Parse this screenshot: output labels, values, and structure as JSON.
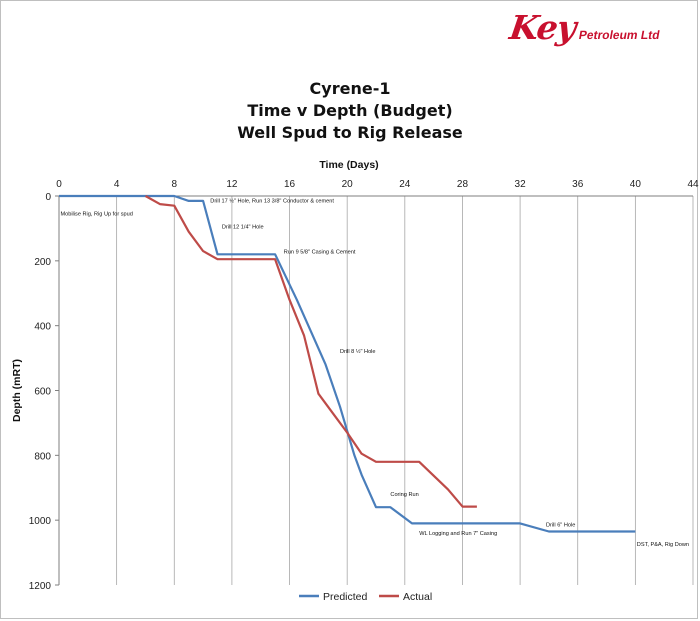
{
  "logo": {
    "brand": "Key",
    "rest": "Petroleum Ltd"
  },
  "chart_data": {
    "type": "line",
    "title": [
      "Cyrene-1",
      "Time v Depth (Budget)",
      "Well Spud to Rig Release"
    ],
    "xlabel": "Time (Days)",
    "ylabel": "Depth (mRT)",
    "xlim": [
      0,
      44
    ],
    "ylim": [
      0,
      1200
    ],
    "y_inverted": true,
    "x_axis_position": "top",
    "xticks": [
      0,
      4,
      8,
      12,
      16,
      20,
      24,
      28,
      32,
      36,
      40,
      44
    ],
    "yticks": [
      0,
      200,
      400,
      600,
      800,
      1000,
      1200
    ],
    "grid": "vertical",
    "legend": "bottom",
    "series": [
      {
        "name": "Predicted",
        "color": "#4a7ebb",
        "points": [
          [
            0,
            0
          ],
          [
            6,
            0
          ],
          [
            8,
            0
          ],
          [
            9,
            15
          ],
          [
            10,
            15
          ],
          [
            11,
            180
          ],
          [
            15,
            180
          ],
          [
            16.5,
            320
          ],
          [
            17.5,
            420
          ],
          [
            18.5,
            520
          ],
          [
            19.5,
            650
          ],
          [
            20.5,
            800
          ],
          [
            21,
            860
          ],
          [
            22,
            960
          ],
          [
            23,
            960
          ],
          [
            24.5,
            1010
          ],
          [
            28,
            1010
          ],
          [
            32,
            1010
          ],
          [
            34,
            1035
          ],
          [
            36,
            1035
          ],
          [
            40,
            1035
          ]
        ]
      },
      {
        "name": "Actual",
        "color": "#be4b48",
        "points": [
          [
            6,
            0
          ],
          [
            7,
            25
          ],
          [
            8,
            30
          ],
          [
            9,
            110
          ],
          [
            10,
            170
          ],
          [
            11,
            195
          ],
          [
            15,
            195
          ],
          [
            16,
            320
          ],
          [
            17,
            430
          ],
          [
            18,
            610
          ],
          [
            19,
            670
          ],
          [
            20,
            730
          ],
          [
            21,
            795
          ],
          [
            22,
            820
          ],
          [
            24,
            820
          ],
          [
            25,
            820
          ],
          [
            27,
            905
          ],
          [
            28,
            958
          ],
          [
            29,
            958
          ]
        ]
      }
    ],
    "annotations": [
      {
        "text": "Mobilise Rig, Rig Up for spud",
        "x": 0.1,
        "y": 60
      },
      {
        "text": "Drill 17 ½\" Hole, Run 13 3/8\" Conductor  & cement",
        "x": 10.5,
        "y": 20
      },
      {
        "text": "Drill 12 1/4\" Hole",
        "x": 11.3,
        "y": 100
      },
      {
        "text": "Run 9 5/8\" Casing & Cement",
        "x": 15.6,
        "y": 178
      },
      {
        "text": "Drill 8 ½\" Hole",
        "x": 19.5,
        "y": 485
      },
      {
        "text": "Coring Run",
        "x": 23,
        "y": 925
      },
      {
        "text": "Drill 6\" Hole",
        "x": 33.8,
        "y": 1020
      },
      {
        "text": "WL Logging and Run 7\" Casing",
        "x": 25,
        "y": 1045
      },
      {
        "text": "DST, P&A, Rig Down",
        "x": 40.1,
        "y": 1080
      }
    ]
  }
}
